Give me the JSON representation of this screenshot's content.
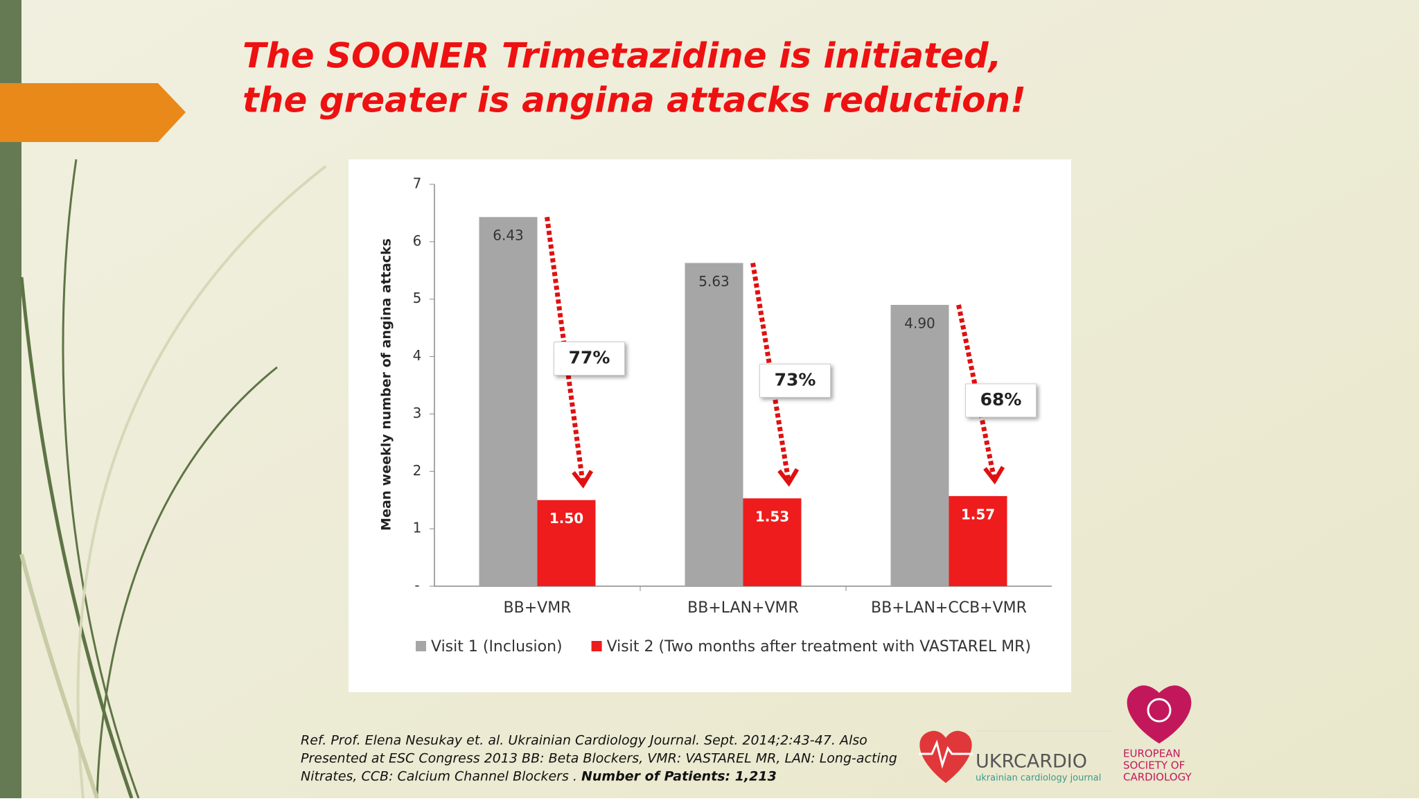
{
  "slide": {
    "title_line1": "The SOONER Trimetazidine is initiated,",
    "title_line2": "the greater is angina attacks reduction!",
    "reference_lines": [
      "Ref. Prof. Elena Nesukay et. al. Ukrainian Cardiology Journal. Sept. 2014;2:43-47.  Also",
      "Presented at ESC Congress 2013 BB: Beta Blockers, VMR: VASTAREL MR, LAN: Long-acting",
      "Nitrates, CCB: Calcium Channel Blockers ."
    ],
    "reference_bold": "Number of Patients: 1,213",
    "logo1_name": "UKRCARDIO",
    "logo1_subtitle": "ukrainian cardiology journal",
    "logo2_lines": [
      "EUROPEAN",
      "SOCIETY OF",
      "CARDIOLOGY"
    ]
  },
  "chart_data": {
    "type": "bar",
    "y_label": "Mean weekly number of angina attacks",
    "categories": [
      "BB+VMR",
      "BB+LAN+VMR",
      "BB+LAN+CCB+VMR"
    ],
    "series": [
      {
        "name": "Visit 1 (Inclusion)",
        "color": "#a6a6a6",
        "values": [
          6.43,
          5.63,
          4.9
        ],
        "value_labels": [
          "6.43",
          "5.63",
          "4.90"
        ]
      },
      {
        "name": "Visit 2 (Two months after treatment with VASTAREL MR)",
        "color": "#ee1c1c",
        "values": [
          1.5,
          1.53,
          1.57
        ],
        "value_labels": [
          "1.50",
          "1.53",
          "1.57"
        ]
      }
    ],
    "annotations": [
      "77%",
      "73%",
      "68%"
    ],
    "ylim": [
      0,
      7
    ],
    "yticks": [
      {
        "value": 0,
        "label": "-"
      },
      1,
      2,
      3,
      4,
      5,
      6,
      7
    ],
    "legend": "bottom"
  }
}
